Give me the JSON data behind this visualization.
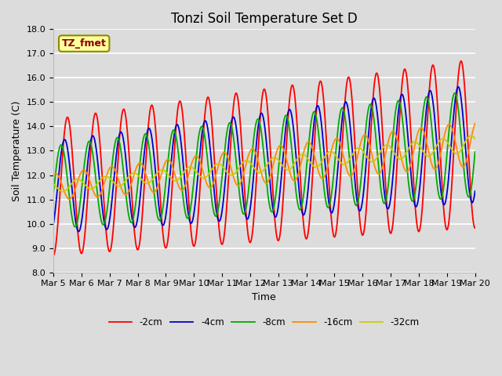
{
  "title": "Tonzi Soil Temperature Set D",
  "ylabel": "Soil Temperature (C)",
  "xlabel": "Time",
  "ylim": [
    8.0,
    18.0
  ],
  "yticks": [
    8.0,
    9.0,
    10.0,
    11.0,
    12.0,
    13.0,
    14.0,
    15.0,
    16.0,
    17.0,
    18.0
  ],
  "xtick_labels": [
    "Mar 5",
    "Mar 6",
    "Mar 7",
    "Mar 8",
    "Mar 9",
    "Mar 10",
    "Mar 11",
    "Mar 12",
    "Mar 13",
    "Mar 14",
    "Mar 15",
    "Mar 16",
    "Mar 17",
    "Mar 18",
    "Mar 19",
    "Mar 20"
  ],
  "annotation_text": "TZ_fmet",
  "annotation_color": "#8B0000",
  "annotation_bg": "#FFFFA0",
  "annotation_border": "#8B8B00",
  "line_colors": [
    "#FF0000",
    "#0000CC",
    "#00AA00",
    "#FF8C00",
    "#CCCC00"
  ],
  "line_labels": [
    "-2cm",
    "-4cm",
    "-8cm",
    "-16cm",
    "-32cm"
  ],
  "line_width": 1.3,
  "bg_color": "#DCDCDC",
  "grid_color": "#FFFFFF",
  "title_fontsize": 12,
  "label_fontsize": 9,
  "tick_fontsize": 8
}
